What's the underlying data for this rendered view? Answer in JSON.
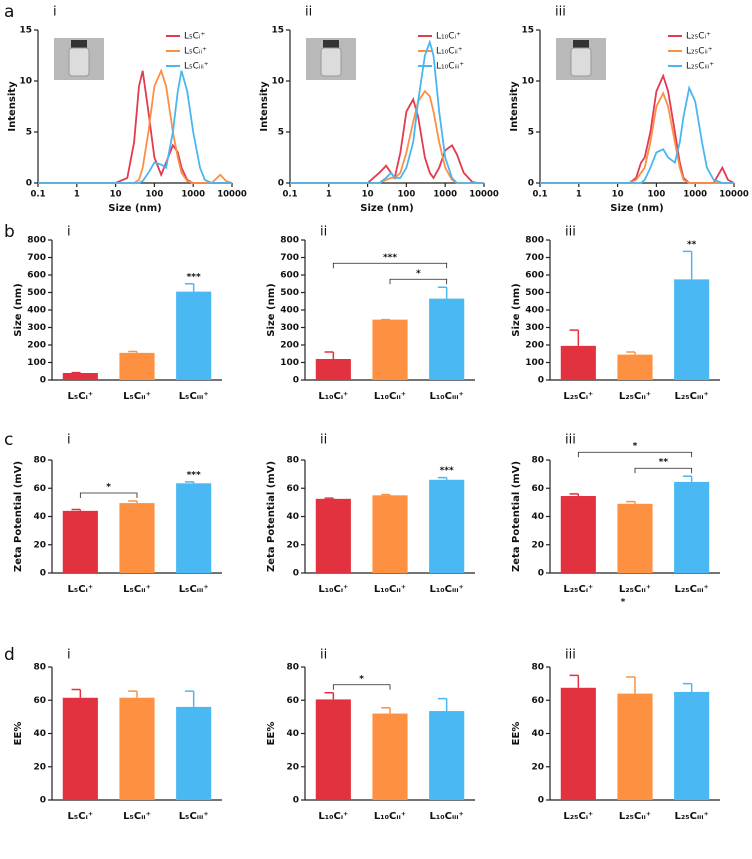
{
  "chart_data": [
    {
      "type": "line",
      "row_label": "a",
      "panel_label": "i",
      "x_label": "Size (nm)",
      "y_label": "Intensity",
      "log_x": true,
      "x": [
        0.1,
        1,
        10,
        20,
        30,
        40,
        50,
        70,
        100,
        150,
        200,
        300,
        400,
        500,
        700,
        1000,
        1500,
        2000,
        3000,
        5000,
        7000,
        10000
      ],
      "xlim": [
        0.1,
        10000
      ],
      "xticks": [
        0.1,
        1,
        10,
        100,
        1000,
        10000
      ],
      "ylim": [
        0,
        15
      ],
      "yticks": [
        0,
        5,
        10,
        15
      ],
      "series": [
        {
          "name": "L₅Cᵢ⁺",
          "color": "#e23a4e",
          "values": [
            0,
            0,
            0,
            0.5,
            4,
            9.5,
            11,
            7,
            2.5,
            0.8,
            2,
            3.7,
            3,
            1.5,
            0.3,
            0,
            0,
            0,
            0,
            0,
            0,
            0
          ]
        },
        {
          "name": "L₅Cᵢᵢ⁺",
          "color": "#fb8f45",
          "values": [
            0,
            0,
            0,
            0,
            0,
            0.3,
            1.5,
            5,
            9.5,
            11,
            9.5,
            5,
            2.5,
            1,
            0.2,
            0,
            0,
            0,
            0,
            0.8,
            0.2,
            0
          ]
        },
        {
          "name": "L₅Cᵢᵢᵢ⁺",
          "color": "#4ab6f0",
          "values": [
            0,
            0,
            0,
            0,
            0,
            0,
            0.2,
            1,
            2,
            1.8,
            1.5,
            5,
            9,
            11,
            9,
            5,
            1.5,
            0.3,
            0,
            0,
            0,
            0
          ]
        }
      ]
    },
    {
      "type": "line",
      "panel_label": "ii",
      "x_label": "Size (nm)",
      "y_label": "Intensity",
      "log_x": true,
      "x": [
        0.1,
        1,
        10,
        20,
        30,
        40,
        50,
        70,
        100,
        150,
        200,
        300,
        400,
        500,
        700,
        1000,
        1500,
        2000,
        3000,
        5000,
        7000,
        10000
      ],
      "xlim": [
        0.1,
        10000
      ],
      "xticks": [
        0.1,
        1,
        10,
        100,
        1000,
        10000
      ],
      "ylim": [
        0,
        15
      ],
      "yticks": [
        0,
        5,
        10,
        15
      ],
      "series": [
        {
          "name": "L₁₀Cᵢ⁺",
          "color": "#e23a4e",
          "values": [
            0,
            0,
            0,
            1,
            1.7,
            1,
            0.5,
            3,
            7,
            8.2,
            6.5,
            2.5,
            1,
            0.5,
            1.5,
            3.2,
            3.7,
            2.8,
            1,
            0.1,
            0,
            0
          ]
        },
        {
          "name": "L₁₀Cᵢᵢ⁺",
          "color": "#fb8f45",
          "values": [
            0,
            0,
            0,
            0,
            0.3,
            0.5,
            0.5,
            1,
            3,
            6,
            8,
            9,
            8.5,
            7,
            4,
            1.5,
            0.3,
            0,
            0,
            0,
            0,
            0
          ]
        },
        {
          "name": "L₁₀Cᵢᵢᵢ⁺",
          "color": "#4ab6f0",
          "values": [
            0,
            0,
            0,
            0,
            0.5,
            1,
            0.5,
            0.5,
            1.5,
            4,
            8,
            12.5,
            13.8,
            12.5,
            7,
            2.5,
            0.5,
            0,
            0,
            0,
            0,
            0
          ]
        }
      ]
    },
    {
      "type": "line",
      "panel_label": "iii",
      "x_label": "Size (nm)",
      "y_label": "Intensity",
      "log_x": true,
      "x": [
        0.1,
        1,
        10,
        20,
        30,
        40,
        50,
        70,
        100,
        150,
        200,
        300,
        400,
        500,
        700,
        1000,
        1500,
        2000,
        3000,
        5000,
        7000,
        10000
      ],
      "xlim": [
        0.1,
        10000
      ],
      "xticks": [
        0.1,
        1,
        10,
        100,
        1000,
        10000
      ],
      "ylim": [
        0,
        15
      ],
      "yticks": [
        0,
        5,
        10,
        15
      ],
      "series": [
        {
          "name": "L₂₅Cᵢ⁺",
          "color": "#e23a4e",
          "values": [
            0,
            0,
            0,
            0,
            0.5,
            2,
            2.5,
            5,
            9,
            10.5,
            9,
            5,
            2,
            0.5,
            0,
            0,
            0,
            0,
            0,
            1.5,
            0.3,
            0
          ]
        },
        {
          "name": "L₂₅Cᵢᵢ⁺",
          "color": "#fb8f45",
          "values": [
            0,
            0,
            0,
            0,
            0.3,
            1,
            1.5,
            4,
            7.5,
            8.8,
            7.5,
            4,
            1.5,
            0.3,
            0,
            0,
            0,
            0,
            0,
            0,
            0,
            0
          ]
        },
        {
          "name": "L₂₅Cᵢᵢᵢ⁺",
          "color": "#4ab6f0",
          "values": [
            0,
            0,
            0,
            0,
            0,
            0,
            0.3,
            1.5,
            3,
            3.3,
            2.5,
            2,
            4,
            6.5,
            9.3,
            8,
            4,
            1.5,
            0.3,
            0,
            0,
            0
          ]
        }
      ]
    },
    {
      "type": "bar",
      "row_label": "b",
      "panel_label": "i",
      "y_label": "Size (nm)",
      "categories": [
        "L₅Cᵢ⁺",
        "L₅Cᵢᵢ⁺",
        "L₅Cᵢᵢᵢ⁺"
      ],
      "values": [
        40,
        155,
        505
      ],
      "errors": [
        2,
        8,
        45
      ],
      "colors": [
        "#e2323f",
        "#fd9141",
        "#4ab8f2"
      ],
      "ylim": [
        0,
        800
      ],
      "yticks": [
        0,
        100,
        200,
        300,
        400,
        500,
        600,
        700,
        800
      ],
      "significance": [
        {
          "label": "***",
          "between": [
            2,
            2
          ]
        }
      ]
    },
    {
      "type": "bar",
      "panel_label": "ii",
      "y_label": "Size (nm)",
      "categories": [
        "L₁₀Cᵢ⁺",
        "L₁₀Cᵢᵢ⁺",
        "L₁₀Cᵢᵢᵢ⁺"
      ],
      "values": [
        120,
        345,
        465
      ],
      "errors": [
        40,
        0,
        65
      ],
      "colors": [
        "#e2323f",
        "#fd9141",
        "#4ab8f2"
      ],
      "ylim": [
        0,
        800
      ],
      "yticks": [
        0,
        100,
        200,
        300,
        400,
        500,
        600,
        700,
        800
      ],
      "significance": [
        {
          "label": "***",
          "between": [
            0,
            2
          ]
        },
        {
          "label": "*",
          "between": [
            1,
            2
          ]
        }
      ]
    },
    {
      "type": "bar",
      "panel_label": "iii",
      "y_label": "Size (nm)",
      "categories": [
        "L₂₅Cᵢ⁺",
        "L₂₅Cᵢᵢ⁺",
        "L₂₅Cᵢᵢᵢ⁺"
      ],
      "values": [
        195,
        145,
        575
      ],
      "errors": [
        90,
        15,
        160
      ],
      "colors": [
        "#e2323f",
        "#fd9141",
        "#4ab8f2"
      ],
      "ylim": [
        0,
        800
      ],
      "yticks": [
        0,
        100,
        200,
        300,
        400,
        500,
        600,
        700,
        800
      ],
      "significance": [
        {
          "label": "**",
          "between": [
            2,
            2
          ]
        }
      ]
    },
    {
      "type": "bar",
      "row_label": "c",
      "panel_label": "i",
      "y_label": "Zeta Potential (mV)",
      "categories": [
        "L₅Cᵢ⁺",
        "L₅Cᵢᵢ⁺",
        "L₅Cᵢᵢᵢ⁺"
      ],
      "values": [
        44,
        49.5,
        63.5
      ],
      "errors": [
        1,
        1.5,
        1
      ],
      "colors": [
        "#e2323f",
        "#fd9141",
        "#4ab8f2"
      ],
      "ylim": [
        0,
        80
      ],
      "yticks": [
        0,
        20,
        40,
        60,
        80
      ],
      "significance": [
        {
          "label": "*",
          "between": [
            0,
            1
          ]
        },
        {
          "label": "***",
          "between": [
            2,
            2
          ]
        }
      ]
    },
    {
      "type": "bar",
      "panel_label": "ii",
      "y_label": "Zeta Potential (mV)",
      "categories": [
        "L₁₀Cᵢ⁺",
        "L₁₀Cᵢᵢ⁺",
        "L₁₀Cᵢᵢᵢ⁺"
      ],
      "values": [
        52.5,
        55,
        66
      ],
      "errors": [
        0.5,
        0.5,
        1.5
      ],
      "colors": [
        "#e2323f",
        "#fd9141",
        "#4ab8f2"
      ],
      "ylim": [
        0,
        80
      ],
      "yticks": [
        0,
        20,
        40,
        60,
        80
      ],
      "significance": [
        {
          "label": "***",
          "between": [
            2,
            2
          ]
        }
      ]
    },
    {
      "type": "bar",
      "panel_label": "iii",
      "y_label": "Zeta Potential (mV)",
      "categories": [
        "L₂₅Cᵢ⁺",
        "L₂₅Cᵢᵢ⁺",
        "L₂₅Cᵢᵢᵢ⁺"
      ],
      "values": [
        54.5,
        49,
        64.5
      ],
      "errors": [
        1.5,
        1.5,
        4
      ],
      "colors": [
        "#e2323f",
        "#fd9141",
        "#4ab8f2"
      ],
      "ylim": [
        0,
        80
      ],
      "yticks": [
        0,
        20,
        40,
        60,
        80
      ],
      "significance": [
        {
          "label": "*",
          "between": [
            0,
            2
          ]
        },
        {
          "label": "**",
          "between": [
            1,
            2
          ]
        }
      ],
      "annotations": [
        {
          "text": "*",
          "category": 1
        }
      ]
    },
    {
      "type": "bar",
      "row_label": "d",
      "panel_label": "i",
      "y_label": "EE%",
      "categories": [
        "L₅Cᵢ⁺",
        "L₅Cᵢᵢ⁺",
        "L₅Cᵢᵢᵢ⁺"
      ],
      "values": [
        61.5,
        61.5,
        56
      ],
      "errors": [
        5,
        4,
        9.5
      ],
      "colors": [
        "#e2323f",
        "#fd9141",
        "#4ab8f2"
      ],
      "ylim": [
        0,
        80
      ],
      "yticks": [
        0,
        20,
        40,
        60,
        80
      ],
      "significance": []
    },
    {
      "type": "bar",
      "panel_label": "ii",
      "y_label": "EE%",
      "categories": [
        "L₁₀Cᵢ⁺",
        "L₁₀Cᵢᵢ⁺",
        "L₁₀Cᵢᵢᵢ⁺"
      ],
      "values": [
        60.5,
        52,
        53.5
      ],
      "errors": [
        4,
        3.5,
        7.5
      ],
      "colors": [
        "#e2323f",
        "#fd9141",
        "#4ab8f2"
      ],
      "ylim": [
        0,
        80
      ],
      "yticks": [
        0,
        20,
        40,
        60,
        80
      ],
      "significance": [
        {
          "label": "*",
          "between": [
            0,
            1
          ]
        }
      ]
    },
    {
      "type": "bar",
      "panel_label": "iii",
      "y_label": "EE%",
      "categories": [
        "L₂₅Cᵢ⁺",
        "L₂₅Cᵢᵢ⁺",
        "L₂₅Cᵢᵢᵢ⁺"
      ],
      "values": [
        67.5,
        64,
        65
      ],
      "errors": [
        7.5,
        10,
        5
      ],
      "colors": [
        "#e2323f",
        "#fd9141",
        "#4ab8f2"
      ],
      "ylim": [
        0,
        80
      ],
      "yticks": [
        0,
        20,
        40,
        60,
        80
      ],
      "significance": []
    }
  ]
}
